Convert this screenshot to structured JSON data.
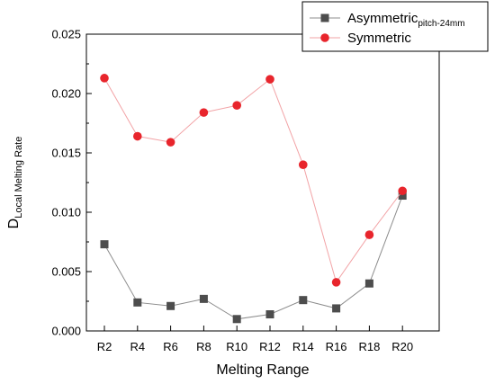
{
  "chart_data": {
    "type": "line",
    "categories": [
      "R2",
      "R4",
      "R6",
      "R8",
      "R10",
      "R12",
      "R14",
      "R16",
      "R18",
      "R20"
    ],
    "xlabel": "Melting Range",
    "ylabel": {
      "main": "D",
      "sub": "Local Melting Rate"
    },
    "ylim": [
      0,
      0.025
    ],
    "yticks": [
      "0.000",
      "0.005",
      "0.010",
      "0.015",
      "0.020",
      "0.025"
    ],
    "grid": false,
    "legend_position": "top-right",
    "series": [
      {
        "name": "Asymmetric",
        "name_sub": "pitch-24mm",
        "marker": "square",
        "color": "#4d4d4d",
        "line_color": "#8c8c8c",
        "values": [
          0.0073,
          0.0024,
          0.0021,
          0.0027,
          0.001,
          0.0014,
          0.0026,
          0.0019,
          0.004,
          0.0114
        ]
      },
      {
        "name": "Symmetric",
        "marker": "circle",
        "color": "#e8252c",
        "line_color": "#f2a3a6",
        "values": [
          0.0213,
          0.0164,
          0.0159,
          0.0184,
          0.019,
          0.0212,
          0.014,
          0.0041,
          0.0081,
          0.0118
        ]
      }
    ]
  }
}
